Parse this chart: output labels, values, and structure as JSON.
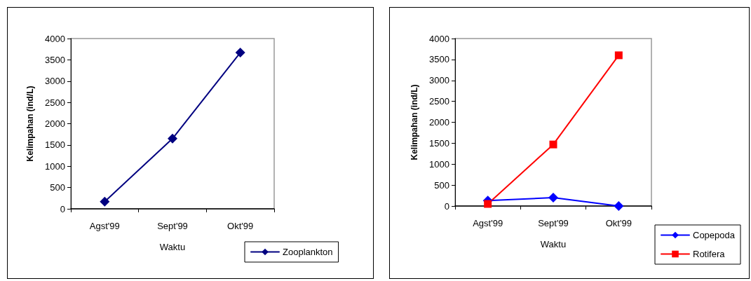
{
  "chart_data": [
    {
      "type": "line",
      "ylabel": "Kelimpahan (ind/L)",
      "xlabel": "Waktu",
      "categories": [
        "Agst'99",
        "Sept'99",
        "Okt'99"
      ],
      "ylim": [
        0,
        4000
      ],
      "yticks": [
        0,
        500,
        1000,
        1500,
        2000,
        2500,
        3000,
        3500,
        4000
      ],
      "grid": false,
      "legend": "bottom right",
      "marker": "diamond",
      "series": [
        {
          "name": "Zooplankton",
          "color": "#000080",
          "values": [
            170,
            1650,
            3670
          ]
        }
      ]
    },
    {
      "type": "line",
      "ylabel": "Kelimpahan (ind/L)",
      "xlabel": "Waktu",
      "categories": [
        "Agst'99",
        "Sept'99",
        "Okt'99"
      ],
      "ylim": [
        0,
        4000
      ],
      "yticks": [
        0,
        500,
        1000,
        1500,
        2000,
        2500,
        3000,
        3500,
        4000
      ],
      "grid": false,
      "legend": "bottom right",
      "series": [
        {
          "name": "Copepoda",
          "color": "#0000ff",
          "marker": "diamond",
          "values": [
            130,
            200,
            0
          ]
        },
        {
          "name": "Rotifera",
          "color": "#ff0000",
          "marker": "square",
          "values": [
            50,
            1470,
            3600
          ]
        }
      ]
    }
  ]
}
